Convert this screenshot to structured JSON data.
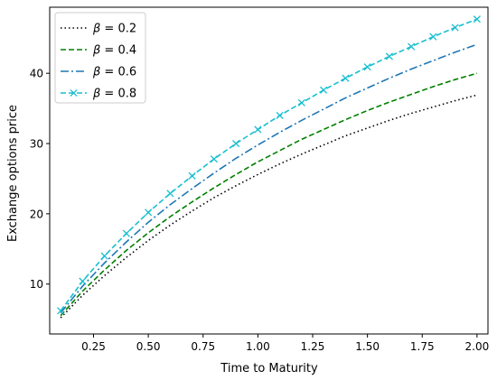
{
  "chart_data": {
    "type": "line",
    "title": "",
    "xlabel": "Time to Maturity",
    "ylabel": "Exchange options price",
    "xlim": [
      0.05,
      2.05
    ],
    "ylim": [
      2.9,
      49.4
    ],
    "xticks": [
      0.25,
      0.5,
      0.75,
      1.0,
      1.25,
      1.5,
      1.75,
      2.0
    ],
    "xtick_labels": [
      "0.25",
      "0.50",
      "0.75",
      "1.00",
      "1.25",
      "1.50",
      "1.75",
      "2.00"
    ],
    "yticks": [
      10,
      20,
      30,
      40
    ],
    "ytick_labels": [
      "10",
      "20",
      "30",
      "40"
    ],
    "grid": false,
    "legend_position": "top-left",
    "x": [
      0.1,
      0.2,
      0.3,
      0.4,
      0.5,
      0.6,
      0.7,
      0.8,
      0.9,
      1.0,
      1.1,
      1.2,
      1.3,
      1.4,
      1.5,
      1.6,
      1.7,
      1.8,
      1.9,
      2.0
    ],
    "series": [
      {
        "name": "β = 0.2",
        "label_main": "β",
        "label_rest": " = 0.2",
        "color": "#000000",
        "style": "dotted",
        "marker": "none",
        "values": [
          5.2,
          8.4,
          11.2,
          13.8,
          16.2,
          18.4,
          20.4,
          22.3,
          24.0,
          25.6,
          27.1,
          28.5,
          29.8,
          31.1,
          32.2,
          33.3,
          34.3,
          35.2,
          36.1,
          36.9
        ]
      },
      {
        "name": "β = 0.4",
        "label_main": "β",
        "label_rest": " = 0.4",
        "color": "#008000",
        "style": "dashed",
        "marker": "none",
        "values": [
          5.5,
          9.0,
          12.0,
          14.8,
          17.3,
          19.6,
          21.7,
          23.7,
          25.6,
          27.4,
          29.0,
          30.6,
          32.0,
          33.4,
          34.7,
          35.9,
          37.0,
          38.1,
          39.1,
          40.0
        ]
      },
      {
        "name": "β = 0.6",
        "label_main": "β",
        "label_rest": " = 0.6",
        "color": "#1f77b4",
        "style": "dashdot",
        "marker": "none",
        "values": [
          5.9,
          9.7,
          13.0,
          16.0,
          18.8,
          21.3,
          23.6,
          25.8,
          27.9,
          29.8,
          31.6,
          33.3,
          34.9,
          36.5,
          37.9,
          39.3,
          40.6,
          41.8,
          43.0,
          44.1
        ]
      },
      {
        "name": "β = 0.8",
        "label_main": "β",
        "label_rest": " = 0.8",
        "color": "#17becf",
        "style": "dashed",
        "marker": "x",
        "values": [
          6.2,
          10.4,
          14.0,
          17.2,
          20.2,
          22.9,
          25.4,
          27.8,
          30.0,
          32.0,
          34.0,
          35.8,
          37.6,
          39.3,
          40.9,
          42.4,
          43.8,
          45.2,
          46.5,
          47.7
        ]
      }
    ]
  }
}
